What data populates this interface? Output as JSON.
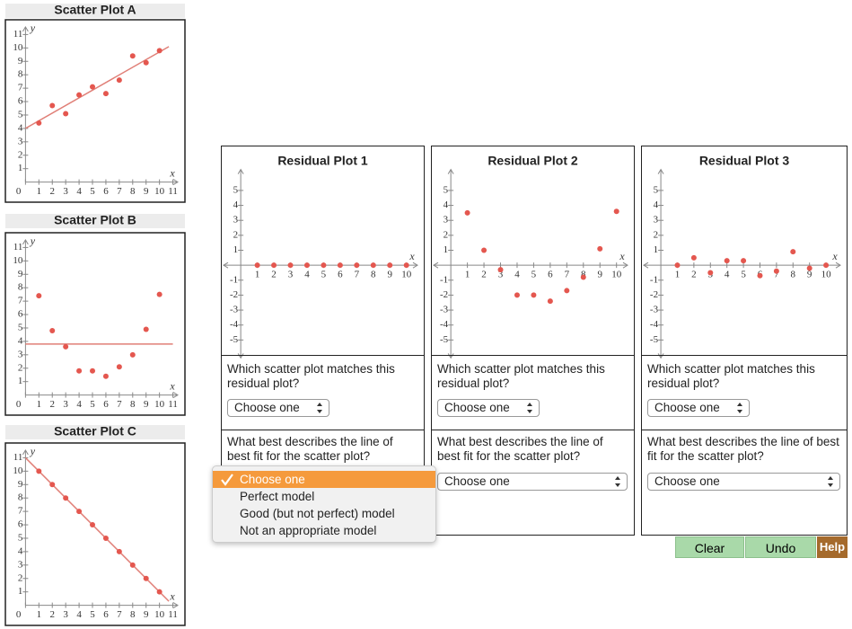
{
  "chart_data": [
    {
      "type": "scatter",
      "title": "Scatter Plot A",
      "x_label": "x",
      "y_label": "y",
      "color": "#e4574f",
      "line_color": "#e07f77",
      "x": [
        1,
        2,
        3,
        4,
        5,
        6,
        7,
        8,
        9,
        10
      ],
      "values": [
        4.4,
        5.7,
        5.1,
        6.5,
        7.1,
        6.6,
        7.6,
        9.4,
        8.9,
        9.8
      ],
      "fit_line": {
        "x": [
          0,
          10.7
        ],
        "y": [
          4.0,
          10.1
        ]
      },
      "xlim": [
        -1.5,
        11.9
      ],
      "ylim": [
        -1.5,
        12.1
      ],
      "xticks": [
        0,
        1,
        2,
        3,
        4,
        5,
        6,
        7,
        8,
        9,
        10,
        11
      ],
      "yticks": [
        1,
        2,
        3,
        4,
        5,
        6,
        7,
        8,
        9,
        10,
        11
      ]
    },
    {
      "type": "scatter",
      "title": "Scatter Plot B",
      "x_label": "x",
      "y_label": "y",
      "color": "#e4574f",
      "line_color": "#e07f77",
      "x": [
        1,
        2,
        3,
        4,
        5,
        6,
        7,
        8,
        9,
        10
      ],
      "values": [
        7.4,
        4.8,
        3.6,
        1.8,
        1.8,
        1.4,
        2.1,
        3.0,
        4.9,
        7.5
      ],
      "fit_line": {
        "x": [
          0,
          11
        ],
        "y": [
          3.8,
          3.8
        ]
      },
      "xlim": [
        -1.5,
        11.9
      ],
      "ylim": [
        -1.5,
        12.1
      ],
      "xticks": [
        0,
        1,
        2,
        3,
        4,
        5,
        6,
        7,
        8,
        9,
        10,
        11
      ],
      "yticks": [
        1,
        2,
        3,
        4,
        5,
        6,
        7,
        8,
        9,
        10,
        11
      ]
    },
    {
      "type": "scatter",
      "title": "Scatter Plot C",
      "x_label": "x",
      "y_label": "y",
      "color": "#e4574f",
      "line_color": "#e07f77",
      "x": [
        1,
        2,
        3,
        4,
        5,
        6,
        7,
        8,
        9,
        10
      ],
      "values": [
        10,
        9,
        8,
        7,
        6,
        5,
        4,
        3,
        2,
        1
      ],
      "fit_line": {
        "x": [
          0,
          10.7
        ],
        "y": [
          11,
          0.3
        ]
      },
      "xlim": [
        -1.5,
        11.9
      ],
      "ylim": [
        -1.5,
        12.1
      ],
      "xticks": [
        0,
        1,
        2,
        3,
        4,
        5,
        6,
        7,
        8,
        9,
        10,
        11
      ],
      "yticks": [
        1,
        2,
        3,
        4,
        5,
        6,
        7,
        8,
        9,
        10,
        11
      ]
    },
    {
      "type": "scatter",
      "title": "Residual Plot 1",
      "x_label": "x",
      "color": "#e4574f",
      "x": [
        1,
        2,
        3,
        4,
        5,
        6,
        7,
        8,
        9,
        10
      ],
      "values": [
        0,
        0,
        0,
        0,
        0,
        0,
        0,
        0,
        0,
        0
      ],
      "xlim": [
        -1.2,
        11.1
      ],
      "ylim": [
        -6,
        8
      ],
      "xticks": [
        1,
        2,
        3,
        4,
        5,
        6,
        7,
        8,
        9,
        10
      ],
      "yticks": [
        -5,
        -4,
        -3,
        -2,
        -1,
        1,
        2,
        3,
        4,
        5
      ]
    },
    {
      "type": "scatter",
      "title": "Residual Plot 2",
      "x_label": "x",
      "color": "#e4574f",
      "x": [
        1,
        2,
        3,
        4,
        5,
        6,
        7,
        8,
        9,
        10
      ],
      "values": [
        3.5,
        1.0,
        -0.3,
        -2,
        -2,
        -2.4,
        -1.7,
        -0.8,
        1.1,
        3.6
      ],
      "xlim": [
        -1.2,
        11.1
      ],
      "ylim": [
        -6,
        8
      ],
      "xticks": [
        1,
        2,
        3,
        4,
        5,
        6,
        7,
        8,
        9,
        10
      ],
      "yticks": [
        -5,
        -4,
        -3,
        -2,
        -1,
        1,
        2,
        3,
        4,
        5
      ]
    },
    {
      "type": "scatter",
      "title": "Residual Plot 3",
      "x_label": "x",
      "color": "#e4574f",
      "x": [
        1,
        2,
        3,
        4,
        5,
        6,
        7,
        8,
        9,
        10
      ],
      "values": [
        0,
        0.5,
        -0.5,
        0.3,
        0.3,
        -0.7,
        -0.4,
        0.9,
        -0.2,
        0
      ],
      "xlim": [
        -1.2,
        11.3
      ],
      "ylim": [
        -6,
        8
      ],
      "xticks": [
        1,
        2,
        3,
        4,
        5,
        6,
        7,
        8,
        9,
        10
      ],
      "yticks": [
        -5,
        -4,
        -3,
        -2,
        -1,
        1,
        2,
        3,
        4,
        5
      ]
    }
  ],
  "questions": [
    {
      "match_prompt": "Which scatter plot matches this residual plot?",
      "match_select": "Choose one",
      "fit_prompt": "What best describes the line of best fit for the scatter plot?",
      "fit_select": "Choose one"
    },
    {
      "match_prompt": "Which scatter plot matches this residual plot?",
      "match_select": "Choose one",
      "fit_prompt": "What best describes the line of best fit for the scatter plot?",
      "fit_select": "Choose one"
    },
    {
      "match_prompt": "Which scatter plot matches this residual plot?",
      "match_select": "Choose one",
      "fit_prompt": "What best describes the line of best fit for the scatter plot?",
      "fit_select": "Choose one"
    }
  ],
  "open_menu": {
    "options": [
      "Choose one",
      "Perfect model",
      "Good (but not perfect) model",
      "Not an appropriate model"
    ],
    "selected": 0
  },
  "buttons": [
    "Clear",
    "Undo",
    "Help"
  ]
}
